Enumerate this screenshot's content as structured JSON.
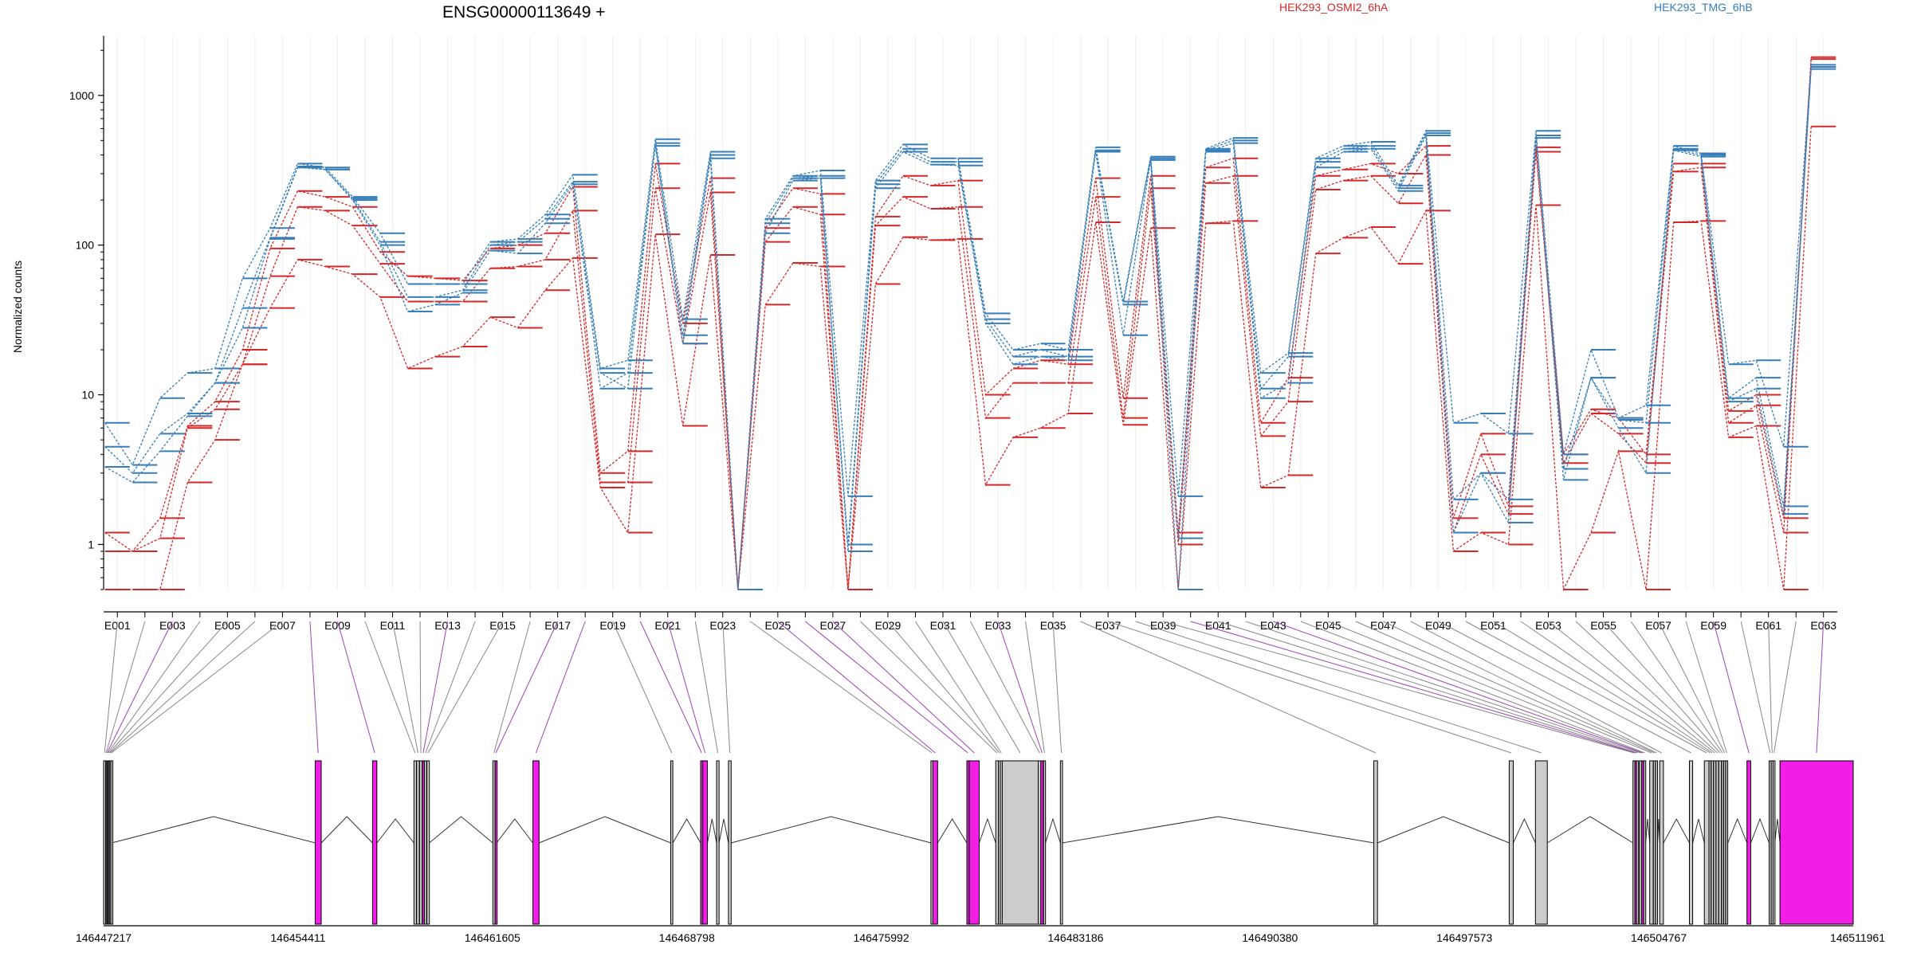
{
  "chart_data": {
    "type": "line",
    "title": "ENSG00000113649 +",
    "xlabel": "",
    "ylabel": "Normalized counts",
    "y_scale": "log",
    "ylim": [
      0.5,
      2500
    ],
    "y_ticks": [
      1,
      10,
      100,
      1000
    ],
    "y_tick_labels": [
      "1",
      "10",
      "100",
      "1000"
    ],
    "grid": "vertical per exon",
    "legend_placement": "top, horizontal",
    "exons": [
      "E001",
      "E002",
      "E003",
      "E004",
      "E005",
      "E006",
      "E007",
      "E008",
      "E009",
      "E010",
      "E011",
      "E012",
      "E013",
      "E014",
      "E015",
      "E016",
      "E017",
      "E018",
      "E019",
      "E020",
      "E021",
      "E022",
      "E023",
      "E024",
      "E025",
      "E026",
      "E027",
      "E028",
      "E029",
      "E030",
      "E031",
      "E032",
      "E033",
      "E034",
      "E035",
      "E036",
      "E037",
      "E038",
      "E039",
      "E040",
      "E041",
      "E042",
      "E043",
      "E044",
      "E045",
      "E046",
      "E047",
      "E048",
      "E049",
      "E050",
      "E051",
      "E052",
      "E053",
      "E054",
      "E055",
      "E056",
      "E057",
      "E058",
      "E059",
      "E060",
      "E061",
      "E062",
      "E063"
    ],
    "exon_tick_labels": [
      "E001",
      "E003",
      "E005",
      "E007",
      "E009",
      "E011",
      "E013",
      "E015",
      "E017",
      "E019",
      "E021",
      "E023",
      "E025",
      "E027",
      "E029",
      "E031",
      "E033",
      "E035",
      "E037",
      "E039",
      "E041",
      "E043",
      "E045",
      "E047",
      "E049",
      "E051",
      "E053",
      "E055",
      "E057",
      "E059",
      "E061",
      "E063"
    ],
    "series": [
      {
        "group": "HEK293_OSMI2_6hA",
        "color": "#d62728",
        "values": [
          1.2,
          0.9,
          1.5,
          6.2,
          9,
          20,
          95,
          230,
          210,
          180,
          90,
          62,
          60,
          58,
          95,
          100,
          120,
          245,
          3,
          4.2,
          350,
          30,
          280,
          0.5,
          130,
          240,
          220,
          0.5,
          155,
          290,
          250,
          270,
          10,
          15,
          17,
          16,
          280,
          9.5,
          290,
          1.2,
          330,
          380,
          6.5,
          13,
          290,
          320,
          350,
          300,
          460,
          1.5,
          5.5,
          1.8,
          450,
          4,
          8,
          7,
          4,
          350,
          350,
          7.8,
          10,
          1.5,
          1800
        ]
      },
      {
        "group": "HEK293_OSMI2_6hA",
        "color": "#d62728",
        "values": [
          0.9,
          0.9,
          1.1,
          6,
          8,
          16,
          62,
          180,
          170,
          135,
          75,
          42,
          42,
          42,
          70,
          72,
          80,
          170,
          2.6,
          2.6,
          240,
          22,
          225,
          0.5,
          105,
          180,
          160,
          0.5,
          135,
          210,
          175,
          180,
          7,
          12,
          12,
          12,
          210,
          7,
          240,
          1,
          260,
          290,
          5.3,
          9,
          235,
          270,
          290,
          190,
          400,
          1.2,
          4,
          1.6,
          420,
          3.5,
          7.5,
          5.5,
          3.5,
          310,
          330,
          6.5,
          8.5,
          1.2,
          1750
        ]
      },
      {
        "group": "HEK293_OSMI2_6hA",
        "color": "#d62728",
        "values": [
          0.5,
          0.5,
          0.5,
          2.6,
          5,
          16,
          38,
          80,
          72,
          64,
          45,
          15,
          18,
          21,
          33,
          28,
          50,
          82,
          2.4,
          1.2,
          118,
          6.2,
          86,
          0.5,
          40,
          76,
          72,
          0.5,
          55,
          113,
          108,
          110,
          2.5,
          5.2,
          6,
          7.5,
          142,
          6.3,
          130,
          0.5,
          140,
          145,
          2.4,
          2.9,
          88,
          112,
          132,
          75,
          170,
          0.9,
          1.2,
          1,
          185,
          0.5,
          1.2,
          4.2,
          0.5,
          142,
          145,
          5.2,
          6.2,
          0.5,
          620
        ]
      },
      {
        "group": "HEK293_TMG_6hB",
        "color": "#377eb8",
        "values": [
          6.5,
          3.4,
          9.5,
          14,
          15,
          60,
          130,
          350,
          330,
          210,
          120,
          55,
          55,
          55,
          105,
          110,
          160,
          295,
          15,
          17,
          510,
          32,
          420,
          0.5,
          150,
          290,
          315,
          2.1,
          270,
          470,
          380,
          380,
          35,
          20,
          22,
          20,
          450,
          42,
          390,
          2.1,
          440,
          520,
          14,
          19,
          380,
          460,
          490,
          250,
          580,
          6.5,
          7.5,
          5.5,
          580,
          4,
          20,
          7,
          8.5,
          460,
          410,
          16,
          17,
          4.5,
          1600
        ]
      },
      {
        "group": "HEK293_TMG_6hB",
        "color": "#377eb8",
        "values": [
          4.5,
          3,
          5.5,
          7.5,
          12,
          38,
          112,
          335,
          320,
          205,
          105,
          45,
          45,
          50,
          100,
          105,
          150,
          265,
          11,
          14,
          480,
          25,
          400,
          0.5,
          140,
          280,
          290,
          1,
          255,
          440,
          360,
          360,
          32,
          18,
          20,
          18,
          430,
          40,
          380,
          1.1,
          430,
          500,
          11,
          18,
          360,
          440,
          460,
          240,
          560,
          2,
          3,
          2,
          540,
          3.2,
          13,
          6.8,
          6.5,
          440,
          400,
          9.5,
          13,
          1.8,
          1550
        ]
      },
      {
        "group": "HEK293_TMG_6hB",
        "color": "#377eb8",
        "values": [
          3.3,
          2.6,
          4.2,
          7.2,
          12,
          28,
          110,
          330,
          320,
          200,
          100,
          36,
          40,
          48,
          92,
          88,
          140,
          255,
          14,
          11,
          460,
          22,
          380,
          0.5,
          120,
          270,
          280,
          0.9,
          240,
          420,
          345,
          340,
          30,
          16,
          18,
          17,
          420,
          25,
          370,
          0.5,
          420,
          480,
          9.5,
          12,
          330,
          420,
          440,
          230,
          540,
          1.2,
          3,
          1.4,
          520,
          2.7,
          13,
          6,
          3,
          430,
          390,
          9,
          11,
          1.6,
          1500
        ]
      }
    ],
    "gene_model": {
      "coordinate_ticks": [
        "146447217",
        "146454411",
        "146461605",
        "146468798",
        "146475992",
        "146483186",
        "146490380",
        "146497573",
        "146504767",
        "146511961"
      ],
      "exons_genomic": [
        {
          "id": "E001",
          "start": 146447217,
          "end": 146447285,
          "diff": false
        },
        {
          "id": "E002",
          "start": 146447290,
          "end": 146447325,
          "diff": false
        },
        {
          "id": "E003",
          "start": 146447330,
          "end": 146447360,
          "diff": true
        },
        {
          "id": "E004",
          "start": 146447365,
          "end": 146447395,
          "diff": false
        },
        {
          "id": "E005",
          "start": 146447400,
          "end": 146447440,
          "diff": false
        },
        {
          "id": "E006",
          "start": 146447445,
          "end": 146447480,
          "diff": false
        },
        {
          "id": "E007",
          "start": 146447485,
          "end": 146447520,
          "diff": false
        },
        {
          "id": "E008",
          "start": 146455045,
          "end": 146455270,
          "diff": true
        },
        {
          "id": "E009",
          "start": 146457170,
          "end": 146457330,
          "diff": true
        },
        {
          "id": "E010",
          "start": 146458700,
          "end": 146458790,
          "diff": false
        },
        {
          "id": "E011",
          "start": 146458800,
          "end": 146458900,
          "diff": false
        },
        {
          "id": "E012",
          "start": 146458910,
          "end": 146459000,
          "diff": false
        },
        {
          "id": "E013",
          "start": 146459010,
          "end": 146459080,
          "diff": true
        },
        {
          "id": "E014",
          "start": 146459090,
          "end": 146459170,
          "diff": false
        },
        {
          "id": "E015",
          "start": 146459180,
          "end": 146459270,
          "diff": false
        },
        {
          "id": "E016",
          "start": 146461620,
          "end": 146461700,
          "diff": false
        },
        {
          "id": "E017",
          "start": 146461705,
          "end": 146461760,
          "diff": true
        },
        {
          "id": "E018",
          "start": 146463100,
          "end": 146463330,
          "diff": true
        },
        {
          "id": "E019",
          "start": 146468200,
          "end": 146468280,
          "diff": false
        },
        {
          "id": "E020",
          "start": 146469310,
          "end": 146469380,
          "diff": true
        },
        {
          "id": "E021",
          "start": 146469390,
          "end": 146469560,
          "diff": true
        },
        {
          "id": "E022",
          "start": 146469900,
          "end": 146469990,
          "diff": false
        },
        {
          "id": "E023",
          "start": 146470340,
          "end": 146470440,
          "diff": false
        },
        {
          "id": "E024",
          "start": 146477830,
          "end": 146477900,
          "diff": false
        },
        {
          "id": "E025",
          "start": 146477905,
          "end": 146478080,
          "diff": true
        },
        {
          "id": "E026",
          "start": 146479160,
          "end": 146479240,
          "diff": true
        },
        {
          "id": "E027",
          "start": 146479250,
          "end": 146479620,
          "diff": true
        },
        {
          "id": "E028",
          "start": 146480230,
          "end": 146480330,
          "diff": false
        },
        {
          "id": "E029",
          "start": 146480330,
          "end": 146480400,
          "diff": false
        },
        {
          "id": "E030",
          "start": 146480400,
          "end": 146480470,
          "diff": false
        },
        {
          "id": "E031",
          "start": 146480470,
          "end": 146481800,
          "diff": false
        },
        {
          "id": "E032",
          "start": 146481800,
          "end": 146481900,
          "diff": false
        },
        {
          "id": "E033",
          "start": 146481900,
          "end": 146481990,
          "diff": true
        },
        {
          "id": "E034",
          "start": 146482000,
          "end": 146482070,
          "diff": false
        },
        {
          "id": "E035",
          "start": 146482620,
          "end": 146482700,
          "diff": false
        },
        {
          "id": "E036",
          "start": 146494220,
          "end": 146494360,
          "diff": false
        },
        {
          "id": "E037",
          "start": 146499230,
          "end": 146499380,
          "diff": false
        },
        {
          "id": "E038",
          "start": 146500200,
          "end": 146500640,
          "diff": false
        },
        {
          "id": "E039",
          "start": 146503810,
          "end": 146503880,
          "diff": false
        },
        {
          "id": "E040",
          "start": 146503885,
          "end": 146503940,
          "diff": true
        },
        {
          "id": "E041",
          "start": 146503945,
          "end": 146504010,
          "diff": false
        },
        {
          "id": "E042",
          "start": 146504050,
          "end": 146504130,
          "diff": false
        },
        {
          "id": "E043",
          "start": 146504135,
          "end": 146504205,
          "diff": true
        },
        {
          "id": "E044",
          "start": 146504210,
          "end": 146504280,
          "diff": false
        },
        {
          "id": "E045",
          "start": 146504430,
          "end": 146504560,
          "diff": false
        },
        {
          "id": "E046",
          "start": 146504565,
          "end": 146504640,
          "diff": false
        },
        {
          "id": "E047",
          "start": 146504645,
          "end": 146504720,
          "diff": false
        },
        {
          "id": "E048",
          "start": 146504800,
          "end": 146504940,
          "diff": false
        },
        {
          "id": "E049",
          "start": 146505900,
          "end": 146506020,
          "diff": false
        },
        {
          "id": "E050",
          "start": 146506450,
          "end": 146506620,
          "diff": false
        },
        {
          "id": "E051",
          "start": 146506625,
          "end": 146506700,
          "diff": false
        },
        {
          "id": "E052",
          "start": 146506705,
          "end": 146506790,
          "diff": false
        },
        {
          "id": "E053",
          "start": 146506795,
          "end": 146506880,
          "diff": false
        },
        {
          "id": "E054",
          "start": 146506885,
          "end": 146506980,
          "diff": false
        },
        {
          "id": "E055",
          "start": 146506985,
          "end": 146507080,
          "diff": false
        },
        {
          "id": "E056",
          "start": 146507085,
          "end": 146507160,
          "diff": false
        },
        {
          "id": "E057",
          "start": 146507165,
          "end": 146507240,
          "diff": false
        },
        {
          "id": "E058",
          "start": 146507245,
          "end": 146507320,
          "diff": false
        },
        {
          "id": "E059",
          "start": 146508030,
          "end": 146508170,
          "diff": true
        },
        {
          "id": "E060",
          "start": 146508850,
          "end": 146508920,
          "diff": false
        },
        {
          "id": "E061",
          "start": 146508925,
          "end": 146508990,
          "diff": false
        },
        {
          "id": "E062",
          "start": 146508995,
          "end": 146509060,
          "diff": false
        },
        {
          "id": "E063",
          "start": 146509250,
          "end": 146511961,
          "diff": true
        }
      ]
    }
  },
  "legend": [
    {
      "label": "HEK293_OSMI2_6hA",
      "color": "#d62728"
    },
    {
      "label": "HEK293_TMG_6hB",
      "color": "#377eb8"
    }
  ],
  "colors": {
    "diff_exon": "#f01ee6",
    "normal_exon": "#cccccc",
    "connector_normal": "#888888",
    "connector_diff": "#a040b8"
  }
}
